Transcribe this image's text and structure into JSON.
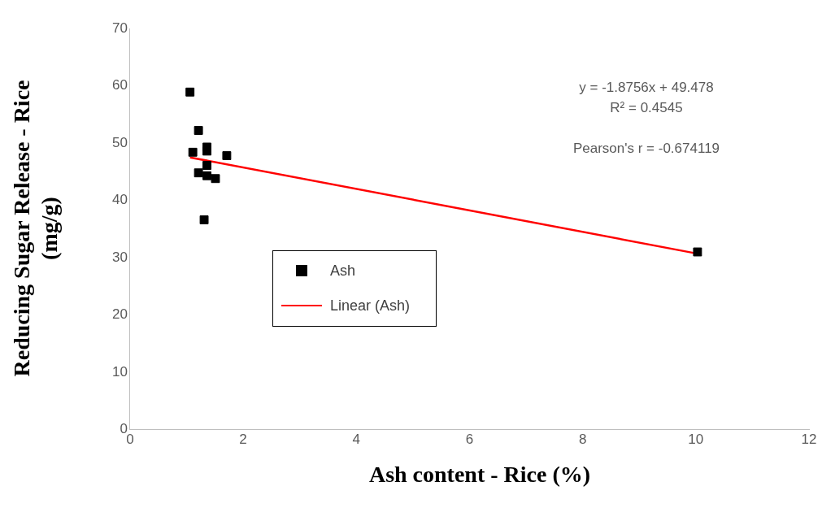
{
  "chart_data": {
    "type": "scatter",
    "xlabel": "Ash content - Rice (%)",
    "ylabel": "Reducing Sugar Release - Rice (mg/g)",
    "xlim": [
      0,
      12
    ],
    "xticks": [
      0,
      2,
      4,
      6,
      8,
      10,
      12
    ],
    "ylim": [
      0,
      70
    ],
    "yticks": [
      0,
      10,
      20,
      30,
      40,
      50,
      60,
      70
    ],
    "grid": false,
    "legend": "center",
    "marker": "square",
    "series": [
      {
        "name": "Ash",
        "type": "scatter",
        "color": "#000000",
        "x": [
          1.06,
          1.21,
          1.11,
          1.36,
          1.36,
          1.71,
          1.21,
          1.36,
          1.36,
          1.51,
          1.31,
          10.03
        ],
        "values": [
          58.9,
          52.2,
          48.4,
          49.3,
          48.6,
          47.8,
          44.8,
          46.1,
          44.3,
          43.8,
          36.6,
          31.0
        ]
      },
      {
        "name": "Linear (Ash)",
        "type": "line",
        "color": "#ff0000",
        "marker": "none",
        "x": [
          1.06,
          10.03
        ],
        "values": [
          47.5,
          30.7
        ]
      }
    ],
    "annotations": [
      "y = -1.8756x + 49.478",
      "R² = 0.4545",
      "Pearson's r = -0.674119"
    ]
  }
}
